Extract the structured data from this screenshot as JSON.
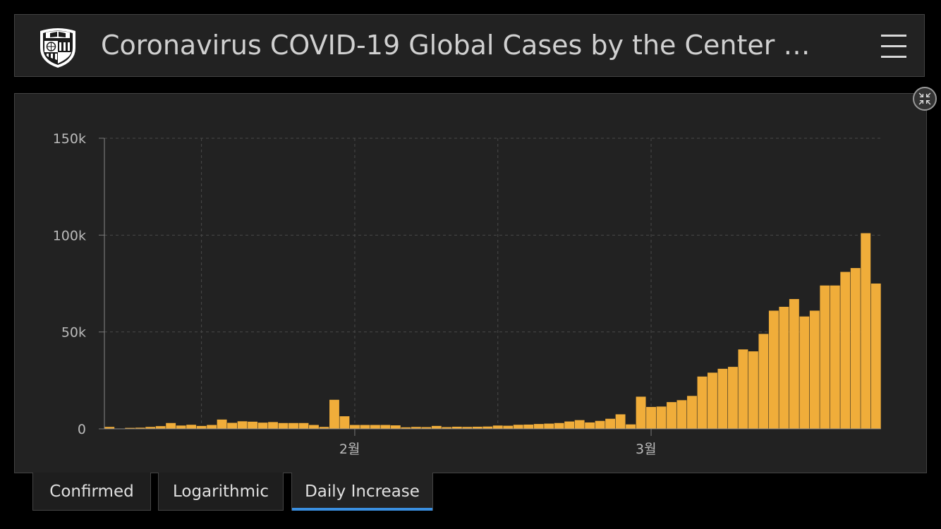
{
  "header": {
    "title": "Coronavirus COVID-19 Global Cases by the Center …",
    "logo_icon": "university-shield-icon",
    "menu_icon": "hamburger-menu-icon"
  },
  "panel": {
    "collapse_icon": "collapse-arrows-icon"
  },
  "tabs": [
    {
      "label": "Confirmed",
      "active": false
    },
    {
      "label": "Logarithmic",
      "active": false
    },
    {
      "label": "Daily Increase",
      "active": true
    }
  ],
  "colors": {
    "bar": "#f0ad3a",
    "accent": "#3a8fe0"
  },
  "chart_data": {
    "type": "bar",
    "title": "",
    "xlabel": "",
    "ylabel": "",
    "ylim": [
      0,
      150000
    ],
    "yticks": [
      {
        "value": 0,
        "label": "0"
      },
      {
        "value": 50000,
        "label": "50k"
      },
      {
        "value": 100000,
        "label": "100k"
      },
      {
        "value": 150000,
        "label": "150k"
      }
    ],
    "x_start": "2020-01-22",
    "xticks": [
      {
        "date": "2020-02-01",
        "label": "2월"
      },
      {
        "date": "2020-03-01",
        "label": "3월"
      }
    ],
    "grid": true,
    "values": [
      1000,
      100,
      500,
      600,
      1000,
      1400,
      3000,
      1700,
      2100,
      1500,
      2000,
      4800,
      3100,
      3900,
      3700,
      3200,
      3500,
      3000,
      3000,
      3000,
      2000,
      1000,
      15000,
      6500,
      2000,
      2000,
      2000,
      2000,
      1800,
      800,
      1000,
      900,
      1500,
      900,
      1100,
      1000,
      1100,
      1200,
      1700,
      1600,
      2100,
      2200,
      2500,
      2700,
      3000,
      3800,
      4500,
      3300,
      4100,
      5200,
      7500,
      2300,
      16600,
      11300,
      11500,
      13800,
      14800,
      17000,
      27000,
      29000,
      31000,
      32000,
      41000,
      40000,
      49000,
      61000,
      63000,
      67000,
      58000,
      61000,
      74000,
      74000,
      81000,
      83000,
      101000,
      75000
    ]
  }
}
